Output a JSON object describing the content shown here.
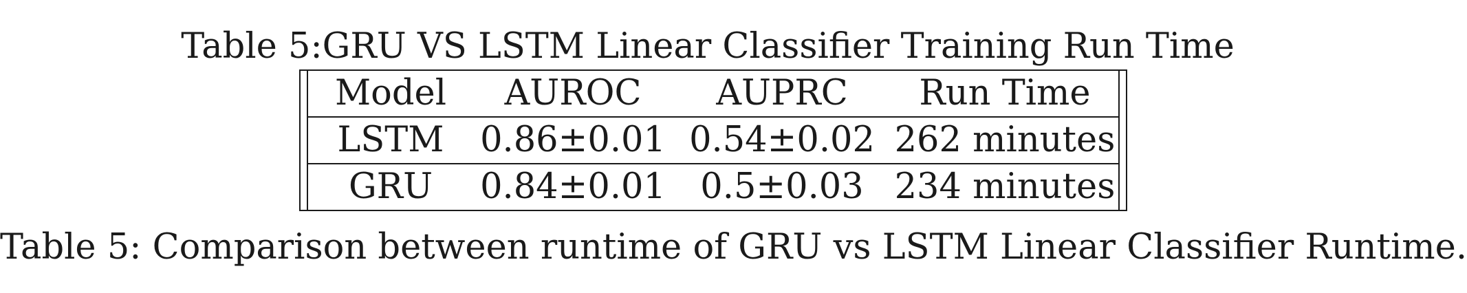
{
  "table_title": "Table 5:GRU VS LSTM Linear Classifier Training Run Time",
  "table": {
    "headers": [
      "Model",
      "AUROC",
      "AUPRC",
      "Run Time"
    ],
    "rows": [
      [
        "LSTM",
        "0.86±0.01",
        "0.54±0.02",
        "262 minutes"
      ],
      [
        "GRU",
        "0.84±0.01",
        "0.5±0.03",
        "234 minutes"
      ]
    ]
  },
  "caption": "Table 5: Comparison between runtime of GRU vs LSTM Linear Classifier Runtime."
}
